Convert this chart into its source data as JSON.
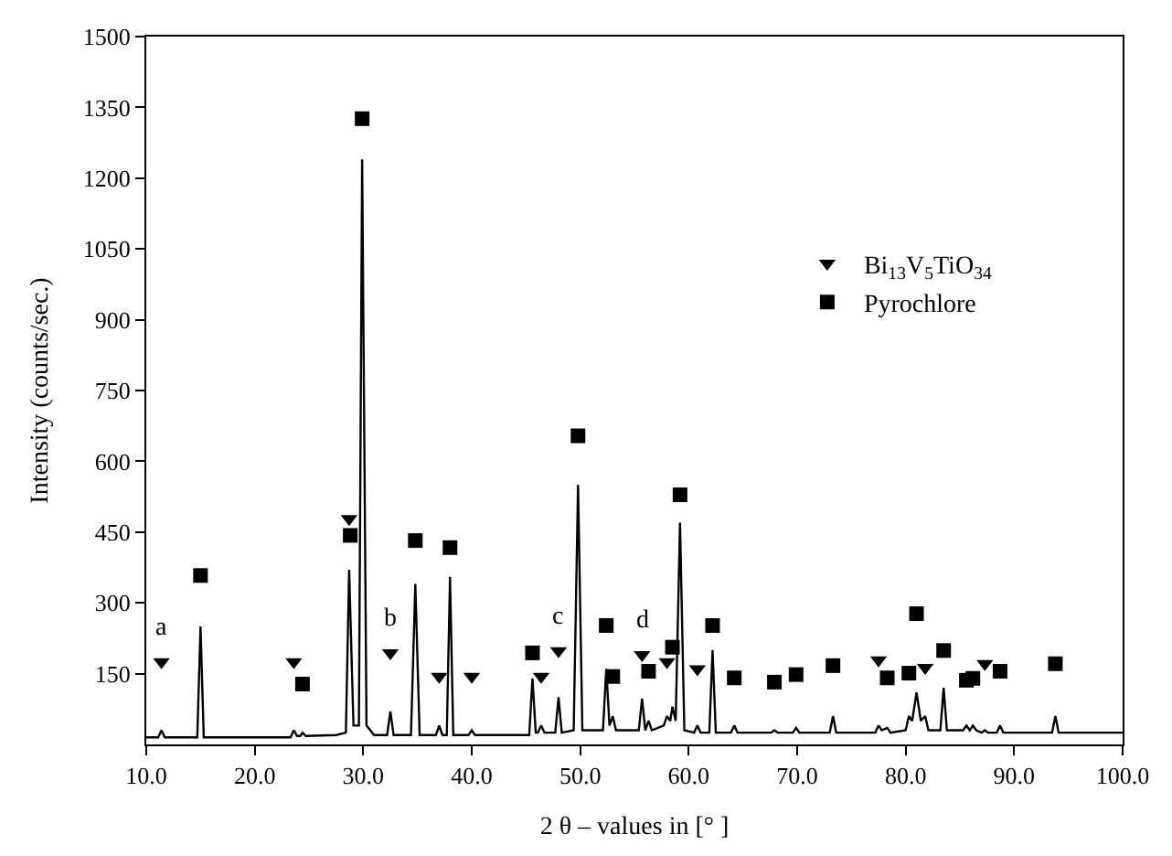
{
  "chart_data": {
    "type": "line",
    "xlabel": "2 θ – values in [° ]",
    "ylabel": "Intensity (counts/sec.)",
    "xlim": [
      10,
      100
    ],
    "ylim": [
      0,
      1500
    ],
    "xticks": [
      {
        "value": 10,
        "label": "10.0"
      },
      {
        "value": 20,
        "label": "20.0"
      },
      {
        "value": 30,
        "label": "30.0"
      },
      {
        "value": 40,
        "label": "40.0"
      },
      {
        "value": 50,
        "label": "50.0"
      },
      {
        "value": 60,
        "label": "60.0"
      },
      {
        "value": 70,
        "label": "70.0"
      },
      {
        "value": 80,
        "label": "80.0"
      },
      {
        "value": 90,
        "label": "90.0"
      },
      {
        "value": 100,
        "label": "100.0"
      }
    ],
    "yticks": [
      150,
      300,
      450,
      600,
      750,
      900,
      1050,
      1200,
      1350,
      1500
    ],
    "legend": "right",
    "series": [
      {
        "color": "#000000",
        "marker": "none",
        "line_style": "solid",
        "x": [
          10,
          11.1,
          11.4,
          11.7,
          14.7,
          15.0,
          15.3,
          20,
          23.3,
          23.6,
          23.9,
          24.2,
          24.4,
          24.7,
          27.5,
          28.4,
          28.7,
          29.1,
          29.6,
          29.9,
          30.3,
          31,
          32.2,
          32.5,
          32.8,
          34.4,
          34.8,
          35.2,
          36.7,
          37.0,
          37.3,
          37.7,
          38.0,
          38.3,
          39.7,
          40.0,
          40.3,
          45.3,
          45.6,
          45.9,
          46.1,
          46.4,
          46.7,
          47.7,
          48.0,
          48.3,
          49.4,
          49.8,
          50.2,
          52.1,
          52.4,
          52.7,
          53.0,
          53.3,
          55.4,
          55.7,
          56.0,
          56.3,
          56.6,
          57.7,
          58.0,
          58.3,
          58.5,
          58.8,
          59.2,
          59.6,
          60.5,
          60.8,
          61.1,
          61.9,
          62.2,
          62.5,
          63.9,
          64.2,
          64.5,
          67.6,
          67.9,
          68.2,
          69.6,
          69.9,
          70.2,
          73.0,
          73.3,
          73.6,
          77.2,
          77.5,
          77.8,
          78.3,
          78.6,
          80.0,
          80.3,
          80.6,
          81.0,
          81.4,
          81.8,
          82.1,
          83.2,
          83.5,
          83.8,
          85.3,
          85.6,
          85.9,
          86.2,
          86.5,
          87.0,
          87.3,
          87.6,
          88.4,
          88.7,
          89.0,
          93.5,
          93.8,
          94.1,
          100
        ],
        "values": [
          15,
          15,
          30,
          15,
          15,
          250,
          15,
          15,
          15,
          30,
          18,
          18,
          25,
          18,
          20,
          25,
          370,
          40,
          40,
          1240,
          40,
          20,
          20,
          70,
          20,
          20,
          340,
          20,
          20,
          40,
          20,
          20,
          355,
          20,
          20,
          30,
          20,
          20,
          140,
          25,
          25,
          40,
          25,
          25,
          100,
          25,
          30,
          550,
          30,
          30,
          160,
          40,
          60,
          30,
          30,
          97,
          30,
          50,
          30,
          40,
          60,
          50,
          80,
          50,
          470,
          30,
          25,
          40,
          25,
          25,
          200,
          25,
          25,
          40,
          25,
          25,
          30,
          25,
          25,
          35,
          25,
          25,
          60,
          25,
          25,
          40,
          30,
          35,
          25,
          30,
          60,
          50,
          110,
          50,
          60,
          30,
          30,
          120,
          30,
          30,
          40,
          30,
          40,
          30,
          25,
          30,
          25,
          25,
          40,
          25,
          25,
          60,
          25,
          25
        ]
      },
      {
        "type": "scatter",
        "name": "Bi$_{13}$V$_{5}$TiO$_{34}$",
        "color": "#000000",
        "marker": "triangle",
        "x": [
          11.4,
          23.6,
          28.7,
          32.5,
          37.0,
          40.0,
          46.4,
          48.0,
          55.7,
          58.0,
          60.8,
          77.5,
          81.8,
          87.3
        ],
        "values": [
          175,
          175,
          478,
          194,
          144,
          144,
          144,
          198,
          190,
          175,
          160,
          179,
          163,
          171
        ]
      },
      {
        "type": "scatter",
        "name": "Pyrochlore",
        "color": "#000000",
        "marker": "square",
        "x": [
          15.0,
          24.4,
          28.8,
          29.9,
          34.8,
          38.0,
          45.6,
          49.8,
          52.4,
          53.0,
          56.3,
          58.5,
          59.2,
          62.2,
          64.2,
          67.9,
          69.9,
          73.3,
          78.3,
          80.3,
          81.0,
          83.5,
          85.6,
          86.2,
          88.7,
          93.8
        ],
        "values": [
          358,
          128,
          443,
          1326,
          432,
          417,
          194,
          654,
          252,
          144,
          155,
          206,
          529,
          252,
          141,
          132,
          148,
          167,
          141,
          151,
          277,
          199,
          136,
          140,
          155,
          171
        ]
      }
    ],
    "annotations": [
      {
        "text": "a",
        "x": 11.4,
        "y": 175
      },
      {
        "text": "b",
        "x": 32.5,
        "y": 194
      },
      {
        "text": "c",
        "x": 48.0,
        "y": 198
      },
      {
        "text": "d",
        "x": 55.7,
        "y": 190
      }
    ]
  }
}
